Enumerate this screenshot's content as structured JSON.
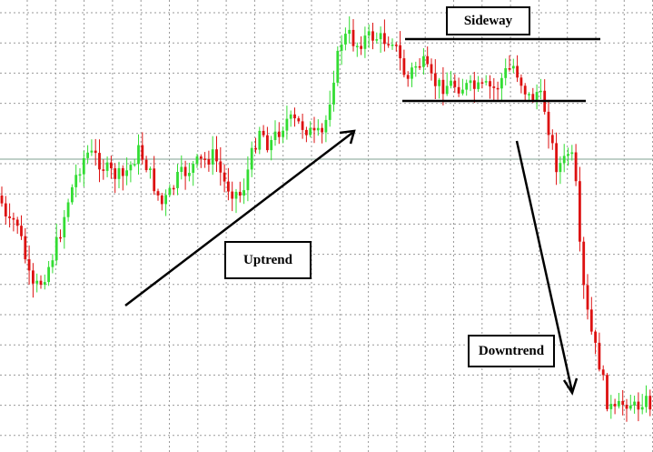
{
  "chart_data": {
    "type": "candlestick",
    "title": "",
    "xlabel": "",
    "ylabel": "",
    "grid": true,
    "colors": {
      "up": "#33dd33",
      "down": "#dd1111",
      "grid": "#9a9a9a",
      "hline": "#7fa090",
      "annotation": "#000000"
    },
    "annotations": [
      {
        "id": "uptrend",
        "text": "Uptrend"
      },
      {
        "id": "sideway",
        "text": "Sideway"
      },
      {
        "id": "downtrend",
        "text": "Downtrend"
      }
    ]
  }
}
